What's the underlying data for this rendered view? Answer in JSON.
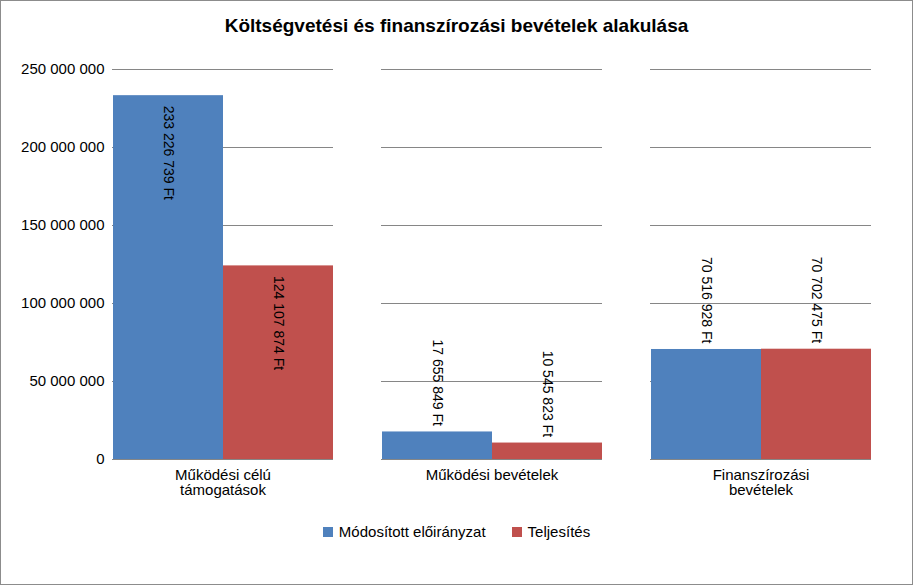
{
  "chart_data": {
    "type": "bar",
    "title": "Költségvetési és finanszírozási bevételek alakulása",
    "categories": [
      "Működési célú támogatások",
      "Működési bevételek",
      "Finanszírozási bevételek"
    ],
    "series": [
      {
        "name": "Módosított előirányzat",
        "color": "#4f81bd",
        "values": [
          233226739,
          17655849,
          70516928
        ],
        "value_labels": [
          "233 226 739 Ft",
          "17 655 849 Ft",
          "70 516 928 Ft"
        ]
      },
      {
        "name": "Teljesítés",
        "color": "#c0504d",
        "values": [
          124107874,
          10545823,
          70702475
        ],
        "value_labels": [
          "124 107 874 Ft",
          "10 545 823 Ft",
          "70 702 475 Ft"
        ]
      }
    ],
    "ylim": [
      0,
      250000000
    ],
    "yticks": [
      0,
      {
        "value": 50000000,
        "label": "50 000 000"
      },
      {
        "value": 100000000,
        "label": "100 000 000"
      },
      {
        "value": 150000000,
        "label": "150 000 000"
      },
      {
        "value": 200000000,
        "label": "200 000 000"
      },
      {
        "value": 250000000,
        "label": "250 000 000"
      }
    ],
    "grid": true,
    "data_labels": true,
    "legend": "bottom"
  }
}
